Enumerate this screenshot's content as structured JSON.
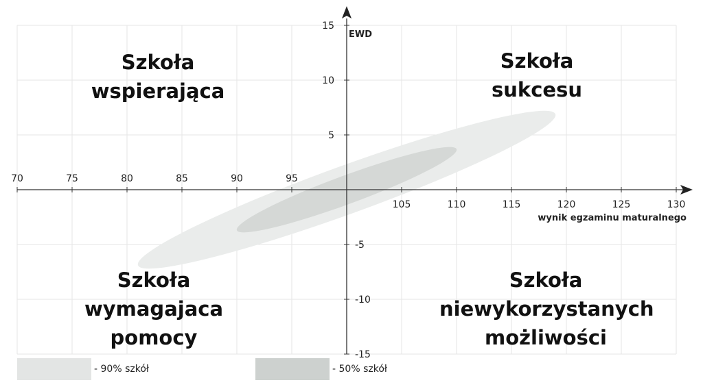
{
  "chart_data": {
    "type": "scatter",
    "xlabel": "wynik egzaminu maturalnego",
    "ylabel": "EWD",
    "xlim": [
      70,
      130
    ],
    "ylim": [
      -15,
      15
    ],
    "x_ticks": [
      70,
      75,
      80,
      85,
      90,
      95,
      105,
      110,
      115,
      120,
      125,
      130
    ],
    "y_ticks": [
      15,
      10,
      5,
      -5,
      -10,
      -15
    ],
    "grid": true,
    "quadrants": {
      "top_left": [
        "Szkoła",
        "wspierająca"
      ],
      "top_right": [
        "Szkoła",
        "sukcesu"
      ],
      "bottom_left": [
        "Szkoła",
        "wymagajaca",
        "pomocy"
      ],
      "bottom_right": [
        "Szkoła",
        "niewykorzystanych",
        "możliwości"
      ]
    },
    "ellipses": [
      {
        "name": "- 90% szkół",
        "color": "#eaeceb",
        "cx": 100,
        "cy": 0,
        "semi_major_x": 19,
        "semi_major_y": 6.9,
        "semi_minor": 2.2
      },
      {
        "name": "- 50% szkół",
        "color": "#d5d8d6",
        "cx": 100,
        "cy": 0,
        "semi_major_x": 10,
        "semi_major_y": 3.7,
        "semi_minor": 1.3
      }
    ],
    "legend": [
      {
        "label": "- 90% szkół",
        "color": "#e3e5e4"
      },
      {
        "label": "- 50% szkół",
        "color": "#cdd1cf"
      }
    ],
    "legend_position": "bottom-left"
  }
}
